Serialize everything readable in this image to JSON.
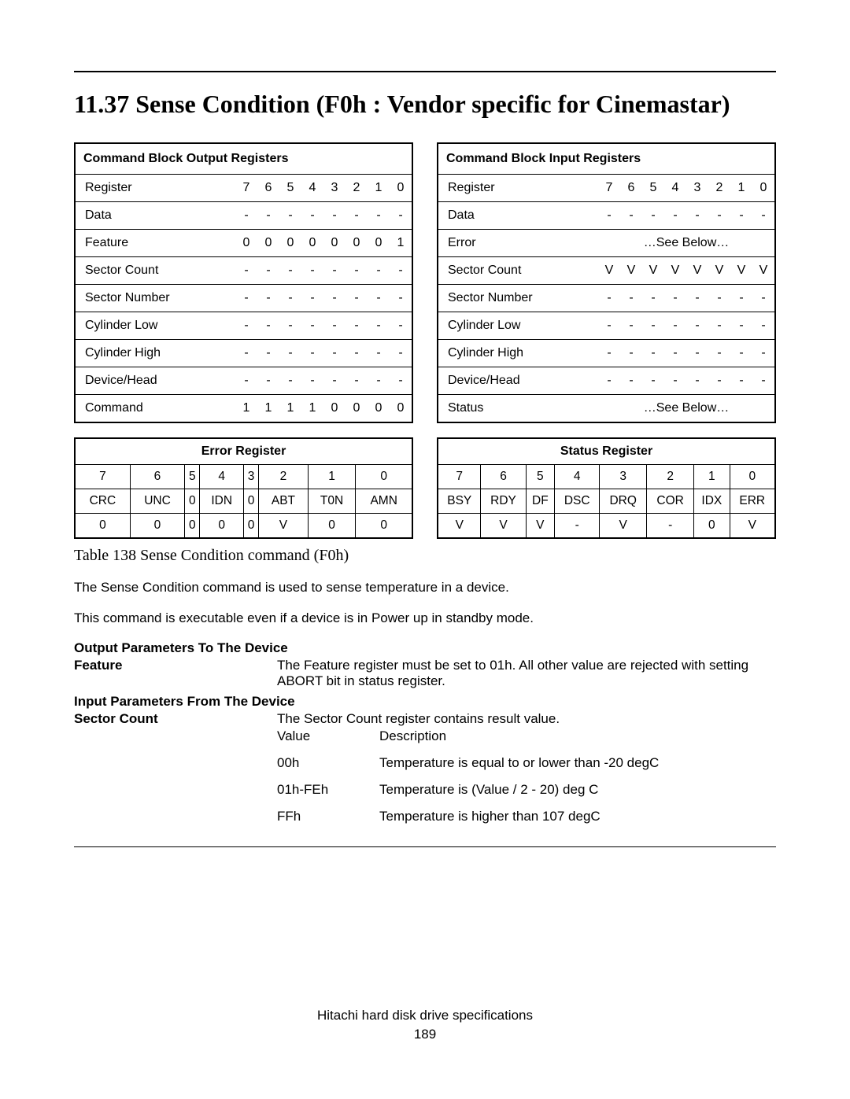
{
  "section_title": "11.37   Sense Condition (F0h : Vendor specific for Cinemastar)",
  "output_table": {
    "header": "Command Block Output Registers",
    "bit_headers": [
      "7",
      "6",
      "5",
      "4",
      "3",
      "2",
      "1",
      "0"
    ],
    "rows": [
      {
        "label": "Register",
        "bits": [
          "7",
          "6",
          "5",
          "4",
          "3",
          "2",
          "1",
          "0"
        ]
      },
      {
        "label": "Data",
        "bits": [
          "-",
          "-",
          "-",
          "-",
          "-",
          "-",
          "-",
          "-"
        ]
      },
      {
        "label": "Feature",
        "bits": [
          "0",
          "0",
          "0",
          "0",
          "0",
          "0",
          "0",
          "1"
        ]
      },
      {
        "label": "Sector Count",
        "bits": [
          "-",
          "-",
          "-",
          "-",
          "-",
          "-",
          "-",
          "-"
        ]
      },
      {
        "label": "Sector Number",
        "bits": [
          "-",
          "-",
          "-",
          "-",
          "-",
          "-",
          "-",
          "-"
        ]
      },
      {
        "label": "Cylinder Low",
        "bits": [
          "-",
          "-",
          "-",
          "-",
          "-",
          "-",
          "-",
          "-"
        ]
      },
      {
        "label": "Cylinder High",
        "bits": [
          "-",
          "-",
          "-",
          "-",
          "-",
          "-",
          "-",
          "-"
        ]
      },
      {
        "label": "Device/Head",
        "bits": [
          "-",
          "-",
          "-",
          "-",
          "-",
          "-",
          "-",
          "-"
        ]
      },
      {
        "label": "Command",
        "bits": [
          "1",
          "1",
          "1",
          "1",
          "0",
          "0",
          "0",
          "0"
        ]
      }
    ]
  },
  "input_table": {
    "header": "Command Block Input Registers",
    "rows": [
      {
        "label": "Register",
        "bits": [
          "7",
          "6",
          "5",
          "4",
          "3",
          "2",
          "1",
          "0"
        ]
      },
      {
        "label": "Data",
        "bits": [
          "-",
          "-",
          "-",
          "-",
          "-",
          "-",
          "-",
          "-"
        ]
      },
      {
        "label": "Error",
        "span": "…See Below…"
      },
      {
        "label": "Sector Count",
        "bits": [
          "V",
          "V",
          "V",
          "V",
          "V",
          "V",
          "V",
          "V"
        ]
      },
      {
        "label": "Sector Number",
        "bits": [
          "-",
          "-",
          "-",
          "-",
          "-",
          "-",
          "-",
          "-"
        ]
      },
      {
        "label": "Cylinder Low",
        "bits": [
          "-",
          "-",
          "-",
          "-",
          "-",
          "-",
          "-",
          "-"
        ]
      },
      {
        "label": "Cylinder High",
        "bits": [
          "-",
          "-",
          "-",
          "-",
          "-",
          "-",
          "-",
          "-"
        ]
      },
      {
        "label": "Device/Head",
        "bits": [
          "-",
          "-",
          "-",
          "-",
          "-",
          "-",
          "-",
          "-"
        ]
      },
      {
        "label": "Status",
        "span": "…See Below…"
      }
    ]
  },
  "error_register": {
    "title": "Error Register",
    "bits": [
      "7",
      "6",
      "5",
      "4",
      "3",
      "2",
      "1",
      "0"
    ],
    "names": [
      "CRC",
      "UNC",
      "0",
      "IDN",
      "0",
      "ABT",
      "T0N",
      "AMN"
    ],
    "vals": [
      "0",
      "0",
      "0",
      "0",
      "0",
      "V",
      "0",
      "0"
    ]
  },
  "status_register": {
    "title": "Status Register",
    "bits": [
      "7",
      "6",
      "5",
      "4",
      "3",
      "2",
      "1",
      "0"
    ],
    "names": [
      "BSY",
      "RDY",
      "DF",
      "DSC",
      "DRQ",
      "COR",
      "IDX",
      "ERR"
    ],
    "vals": [
      "V",
      "V",
      "V",
      "-",
      "V",
      "-",
      "0",
      "V"
    ]
  },
  "table_caption": "Table 138    Sense Condition command (F0h)",
  "para1": "The Sense Condition command is used to sense temperature in a device.",
  "para2": "This command is executable even if a device is in Power up in standby mode.",
  "out_params_heading": "Output Parameters To The Device",
  "feature_label": "Feature",
  "feature_text": "The Feature register must be set to 01h. All other value are rejected with setting ABORT bit in status register.",
  "in_params_heading": "Input Parameters From The Device",
  "sector_label": "Sector Count",
  "sector_text": "The Sector Count register contains result value.",
  "val_header_value": "Value",
  "val_header_desc": "Description",
  "values": [
    {
      "v": "00h",
      "d": "Temperature is equal to or lower than -20 degC"
    },
    {
      "v": "01h-FEh",
      "d": "Temperature is (Value / 2 - 20) deg C"
    },
    {
      "v": "FFh",
      "d": "Temperature is higher than 107 degC"
    }
  ],
  "footer_line1": "Hitachi hard disk drive specifications",
  "footer_line2": "189"
}
